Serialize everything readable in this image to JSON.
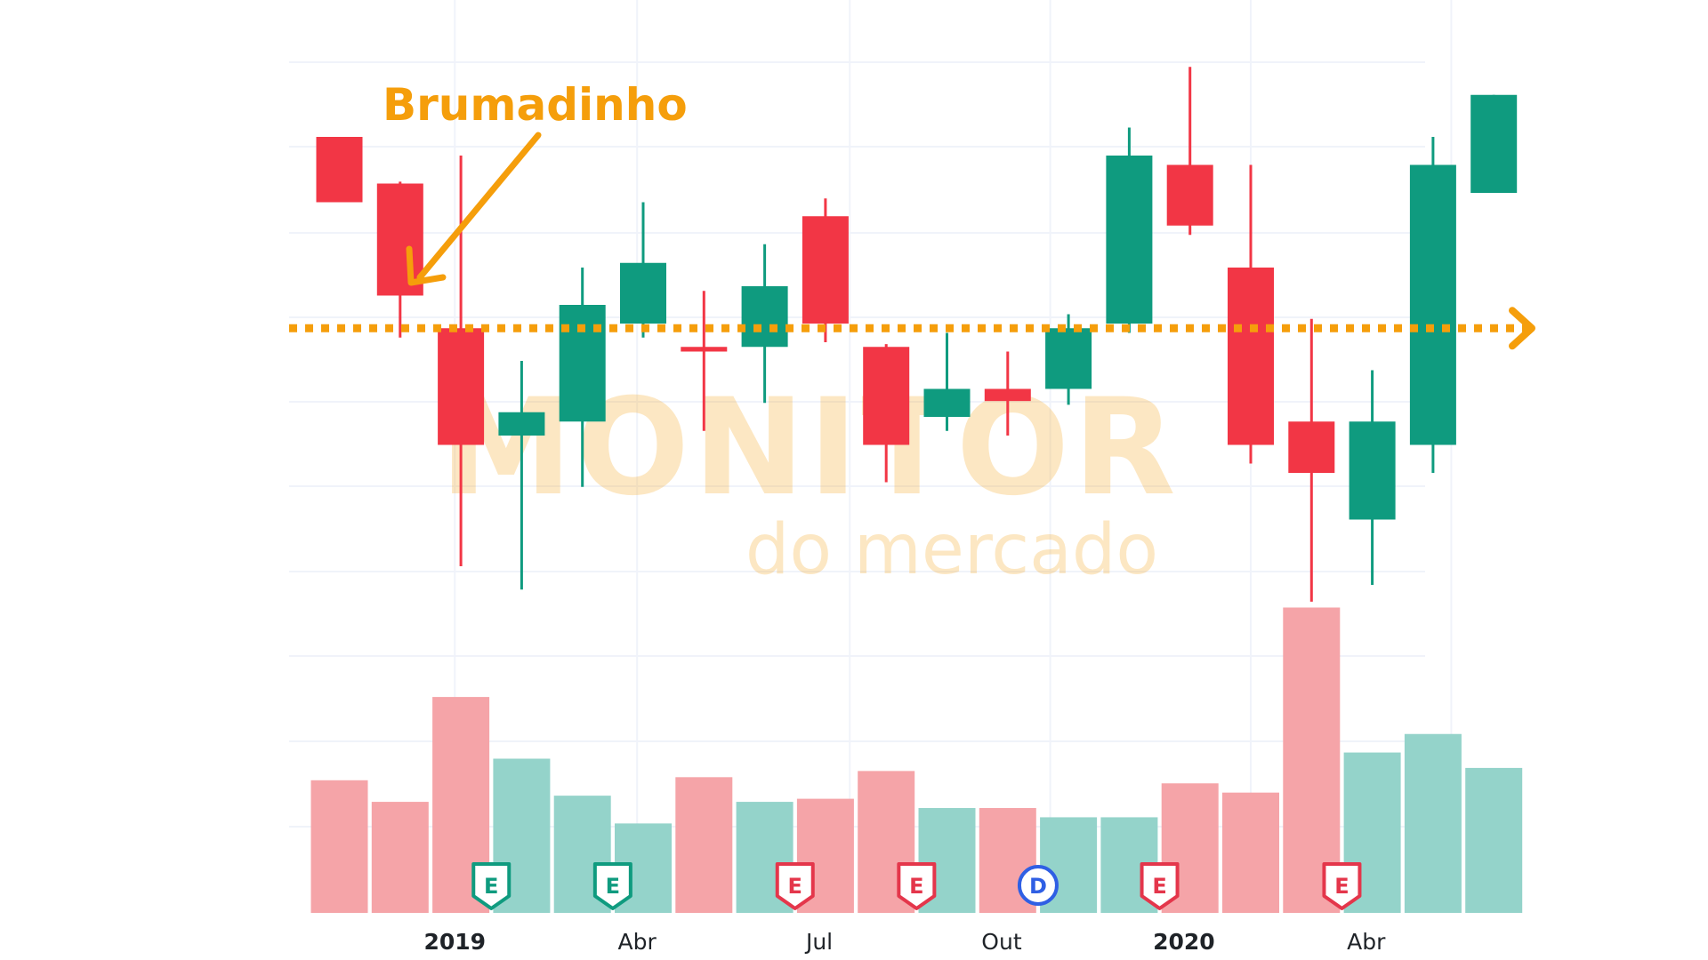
{
  "chart_data": {
    "type": "candlestick",
    "title": "",
    "xlabel": "",
    "ylabel": "",
    "x_tick_labels": [
      {
        "label": "2019",
        "year": true
      },
      {
        "label": "Abr",
        "year": false
      },
      {
        "label": "Jul",
        "year": false
      },
      {
        "label": "Out",
        "year": false
      },
      {
        "label": "2020",
        "year": true
      },
      {
        "label": "Abr",
        "year": false
      }
    ],
    "annotation": {
      "text": "Brumadinho",
      "color": "#f59e0b"
    },
    "reference_line": {
      "value": 4.15,
      "color": "#f59e0b",
      "style": "dotted"
    },
    "price_range": [
      1.0,
      7.0
    ],
    "volume_range": [
      0,
      100
    ],
    "candles": [
      {
        "open": 6.2,
        "high": 6.2,
        "low": 5.5,
        "close": 5.5,
        "volume": 43
      },
      {
        "open": 5.7,
        "high": 5.72,
        "low": 4.05,
        "close": 4.5,
        "volume": 36
      },
      {
        "open": 4.15,
        "high": 6.0,
        "low": 1.6,
        "close": 2.9,
        "volume": 70
      },
      {
        "open": 3.0,
        "high": 3.8,
        "low": 1.35,
        "close": 3.25,
        "volume": 50
      },
      {
        "open": 3.15,
        "high": 4.8,
        "low": 2.45,
        "close": 4.4,
        "volume": 38
      },
      {
        "open": 4.2,
        "high": 5.5,
        "low": 4.05,
        "close": 4.85,
        "volume": 29
      },
      {
        "open": 3.95,
        "high": 4.55,
        "low": 3.05,
        "close": 3.9,
        "volume": 44
      },
      {
        "open": 3.95,
        "high": 5.05,
        "low": 3.35,
        "close": 4.6,
        "volume": 36
      },
      {
        "open": 5.35,
        "high": 5.54,
        "low": 4.0,
        "close": 4.2,
        "volume": 37
      },
      {
        "open": 3.95,
        "high": 3.98,
        "low": 2.5,
        "close": 2.9,
        "volume": 46
      },
      {
        "open": 3.2,
        "high": 4.1,
        "low": 3.05,
        "close": 3.5,
        "volume": 34
      },
      {
        "open": 3.5,
        "high": 3.9,
        "low": 3.0,
        "close": 3.37,
        "volume": 34
      },
      {
        "open": 3.5,
        "high": 4.3,
        "low": 3.33,
        "close": 4.15,
        "volume": 31
      },
      {
        "open": 4.2,
        "high": 6.3,
        "low": 4.1,
        "close": 6.0,
        "volume": 31
      },
      {
        "open": 5.9,
        "high": 6.95,
        "low": 5.15,
        "close": 5.25,
        "volume": 42
      },
      {
        "open": 4.8,
        "high": 5.9,
        "low": 2.7,
        "close": 2.9,
        "volume": 39
      },
      {
        "open": 3.15,
        "high": 4.25,
        "low": 1.22,
        "close": 2.6,
        "volume": 99
      },
      {
        "open": 2.1,
        "high": 3.7,
        "low": 1.4,
        "close": 3.15,
        "volume": 52
      },
      {
        "open": 2.9,
        "high": 6.2,
        "low": 2.6,
        "close": 5.9,
        "volume": 58
      },
      {
        "open": 5.6,
        "high": 6.65,
        "low": 5.6,
        "close": 6.65,
        "volume": 47
      }
    ],
    "events": [
      {
        "after_candle": 3,
        "type": "E",
        "color": "#0f9b7f"
      },
      {
        "after_candle": 5,
        "type": "E",
        "color": "#0f9b7f"
      },
      {
        "after_candle": 8,
        "type": "E",
        "color": "#e4364b"
      },
      {
        "after_candle": 10,
        "type": "E",
        "color": "#e4364b"
      },
      {
        "after_candle": 12,
        "type": "D",
        "color": "#2f5fe4"
      },
      {
        "after_candle": 14,
        "type": "E",
        "color": "#e4364b"
      },
      {
        "after_candle": 17,
        "type": "E",
        "color": "#e4364b"
      }
    ],
    "colors": {
      "up": "#0f9b7f",
      "down": "#f23645",
      "volume_up": "#94d3ca",
      "volume_down": "#f5a4a8"
    }
  },
  "watermark": {
    "line1": "MONITOR",
    "line2": "do mercado"
  }
}
